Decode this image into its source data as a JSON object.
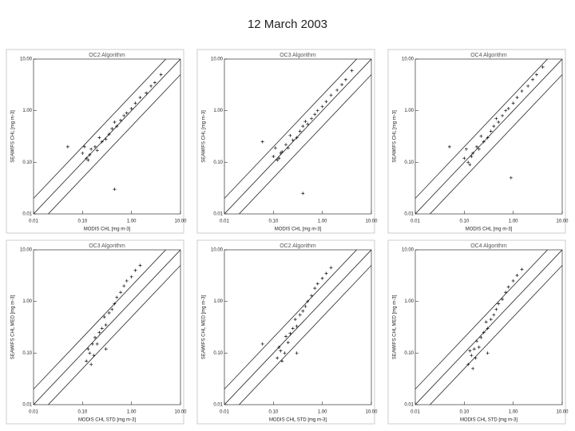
{
  "page_title": "12 March 2003",
  "chart_data": [
    {
      "type": "scatter",
      "title": "OC2 Algorithm",
      "xlabel": "MODIS CHL [mg m-3]",
      "ylabel": "SEAWIFS CHL [mg m-3]",
      "log": true,
      "xlim": [
        0.01,
        10
      ],
      "ylim": [
        0.01,
        10
      ],
      "xticks": [
        {
          "value": 0.01,
          "label": "0.01"
        },
        {
          "value": 0.1,
          "label": "0.10"
        },
        {
          "value": 1,
          "label": "1.00"
        },
        {
          "value": 10,
          "label": "10.00"
        }
      ],
      "yticks": [
        {
          "value": 0.01,
          "label": "0.01"
        },
        {
          "value": 0.1,
          "label": "0.10"
        },
        {
          "value": 1,
          "label": "1.00"
        },
        {
          "value": 10,
          "label": "10.00"
        }
      ],
      "reference_factors": [
        2,
        1,
        0.5
      ],
      "color": "#111111",
      "x": [
        0.1,
        0.12,
        0.15,
        0.11,
        0.14,
        0.18,
        0.2,
        0.13,
        0.25,
        0.3,
        0.22,
        0.35,
        0.4,
        0.5,
        0.45,
        0.6,
        0.7,
        0.8,
        1.0,
        1.2,
        1.5,
        2,
        2.5,
        3,
        4,
        0.05,
        0.45
      ],
      "y": [
        0.15,
        0.12,
        0.18,
        0.2,
        0.14,
        0.2,
        0.17,
        0.11,
        0.25,
        0.28,
        0.3,
        0.35,
        0.45,
        0.5,
        0.6,
        0.65,
        0.8,
        0.9,
        1.1,
        1.4,
        1.8,
        2.2,
        3,
        3.5,
        5,
        0.2,
        0.03
      ]
    },
    {
      "type": "scatter",
      "title": "OC3 Algorithm",
      "xlabel": "MODIS CHL [mg m-3]",
      "ylabel": "SEAWIFS CHL [mg m-3]",
      "log": true,
      "xlim": [
        0.01,
        10
      ],
      "ylim": [
        0.01,
        10
      ],
      "xticks": [
        {
          "value": 0.01,
          "label": "0.01"
        },
        {
          "value": 0.1,
          "label": "0.10"
        },
        {
          "value": 1,
          "label": "1.00"
        },
        {
          "value": 10,
          "label": "10.00"
        }
      ],
      "yticks": [
        {
          "value": 0.01,
          "label": "0.01"
        },
        {
          "value": 0.1,
          "label": "0.10"
        },
        {
          "value": 1,
          "label": "1.00"
        },
        {
          "value": 10,
          "label": "10.00"
        }
      ],
      "reference_factors": [
        2,
        1,
        0.5
      ],
      "color": "#111111",
      "x": [
        0.1,
        0.12,
        0.15,
        0.11,
        0.14,
        0.18,
        0.2,
        0.13,
        0.25,
        0.3,
        0.22,
        0.35,
        0.4,
        0.5,
        0.45,
        0.6,
        0.7,
        0.8,
        1.0,
        1.2,
        1.5,
        2,
        2.5,
        3,
        4,
        0.06,
        0.4
      ],
      "y": [
        0.13,
        0.11,
        0.16,
        0.19,
        0.15,
        0.22,
        0.19,
        0.12,
        0.27,
        0.3,
        0.33,
        0.4,
        0.5,
        0.55,
        0.62,
        0.7,
        0.85,
        1.0,
        1.2,
        1.5,
        2,
        2.5,
        3.2,
        4,
        6,
        0.25,
        0.025
      ]
    },
    {
      "type": "scatter",
      "title": "OC4 Algorithm",
      "xlabel": "MODIS CHL [mg m-3]",
      "ylabel": "SEAWIFS CHL [mg m-3]",
      "log": true,
      "xlim": [
        0.01,
        10
      ],
      "ylim": [
        0.01,
        10
      ],
      "xticks": [
        {
          "value": 0.01,
          "label": "0.01"
        },
        {
          "value": 0.1,
          "label": "0.10"
        },
        {
          "value": 1,
          "label": "1.00"
        },
        {
          "value": 10,
          "label": "10.00"
        }
      ],
      "yticks": [
        {
          "value": 0.01,
          "label": "0.01"
        },
        {
          "value": 0.1,
          "label": "0.10"
        },
        {
          "value": 1,
          "label": "1.00"
        },
        {
          "value": 10,
          "label": "10.00"
        }
      ],
      "reference_factors": [
        2,
        1,
        0.5
      ],
      "color": "#111111",
      "x": [
        0.1,
        0.12,
        0.15,
        0.11,
        0.14,
        0.18,
        0.2,
        0.13,
        0.25,
        0.3,
        0.22,
        0.35,
        0.4,
        0.5,
        0.45,
        0.6,
        0.7,
        0.8,
        1.0,
        1.2,
        1.5,
        2,
        2.5,
        3,
        4,
        0.05,
        0.9
      ],
      "y": [
        0.12,
        0.1,
        0.15,
        0.18,
        0.13,
        0.2,
        0.18,
        0.09,
        0.25,
        0.3,
        0.32,
        0.4,
        0.5,
        0.6,
        0.7,
        0.8,
        1.0,
        1.1,
        1.4,
        1.8,
        2.4,
        3,
        4,
        5,
        7,
        0.2,
        0.05
      ]
    },
    {
      "type": "scatter",
      "title": "OC3 Algorithm",
      "xlabel": "MODIS CHL STD [mg m-3]",
      "ylabel": "SEAWIFS CHL MED [mg m-3]",
      "log": true,
      "xlim": [
        0.01,
        10
      ],
      "ylim": [
        0.01,
        10
      ],
      "xticks": [
        {
          "value": 0.01,
          "label": "0.01"
        },
        {
          "value": 0.1,
          "label": "0.10"
        },
        {
          "value": 1,
          "label": "1.00"
        },
        {
          "value": 10,
          "label": "10.00"
        }
      ],
      "yticks": [
        {
          "value": 0.01,
          "label": "0.01"
        },
        {
          "value": 0.1,
          "label": "0.10"
        },
        {
          "value": 1,
          "label": "1.00"
        },
        {
          "value": 10,
          "label": "10.00"
        }
      ],
      "reference_factors": [
        2,
        1,
        0.5
      ],
      "color": "#111111",
      "x": [
        0.12,
        0.14,
        0.15,
        0.13,
        0.17,
        0.2,
        0.18,
        0.22,
        0.25,
        0.3,
        0.28,
        0.35,
        0.4,
        0.45,
        0.5,
        0.6,
        0.7,
        0.8,
        1,
        1.2,
        1.5,
        0.16,
        0.3
      ],
      "y": [
        0.07,
        0.1,
        0.06,
        0.12,
        0.09,
        0.15,
        0.2,
        0.25,
        0.3,
        0.35,
        0.5,
        0.6,
        0.7,
        0.9,
        1.2,
        1.5,
        2,
        2.5,
        3,
        4,
        5,
        0.15,
        0.12
      ]
    },
    {
      "type": "scatter",
      "title": "OC2 Algorithm",
      "xlabel": "MODIS CHL STD [mg m-3]",
      "ylabel": "SEAWIFS CHL MED [mg m-3]",
      "log": true,
      "xlim": [
        0.01,
        10
      ],
      "ylim": [
        0.01,
        10
      ],
      "xticks": [
        {
          "value": 0.01,
          "label": "0.01"
        },
        {
          "value": 0.1,
          "label": "0.10"
        },
        {
          "value": 1,
          "label": "1.00"
        },
        {
          "value": 10,
          "label": "10.00"
        }
      ],
      "yticks": [
        {
          "value": 0.01,
          "label": "0.01"
        },
        {
          "value": 0.1,
          "label": "0.10"
        },
        {
          "value": 1,
          "label": "1.00"
        },
        {
          "value": 10,
          "label": "10.00"
        }
      ],
      "reference_factors": [
        2,
        1,
        0.5
      ],
      "color": "#111111",
      "x": [
        0.12,
        0.14,
        0.15,
        0.13,
        0.17,
        0.2,
        0.18,
        0.22,
        0.25,
        0.3,
        0.28,
        0.35,
        0.4,
        0.45,
        0.5,
        0.6,
        0.7,
        0.8,
        1,
        1.2,
        1.5,
        0.06,
        0.3
      ],
      "y": [
        0.08,
        0.11,
        0.07,
        0.13,
        0.1,
        0.16,
        0.21,
        0.24,
        0.3,
        0.33,
        0.45,
        0.55,
        0.65,
        0.8,
        1.0,
        1.3,
        1.8,
        2.2,
        2.8,
        3.5,
        4.5,
        0.15,
        0.1
      ]
    },
    {
      "type": "scatter",
      "title": "OC4 Algorithm",
      "xlabel": "MODIS CHL STD [mg m-3]",
      "ylabel": "SEAWIFS CHL MED [mg m-3]",
      "log": true,
      "xlim": [
        0.01,
        10
      ],
      "ylim": [
        0.01,
        10
      ],
      "xticks": [
        {
          "value": 0.01,
          "label": "0.01"
        },
        {
          "value": 0.1,
          "label": "0.10"
        },
        {
          "value": 1,
          "label": "1.00"
        },
        {
          "value": 10,
          "label": "10.00"
        }
      ],
      "yticks": [
        {
          "value": 0.01,
          "label": "0.01"
        },
        {
          "value": 0.1,
          "label": "0.10"
        },
        {
          "value": 1,
          "label": "1.00"
        },
        {
          "value": 10,
          "label": "10.00"
        }
      ],
      "reference_factors": [
        2,
        1,
        0.5
      ],
      "color": "#111111",
      "x": [
        0.12,
        0.14,
        0.15,
        0.13,
        0.17,
        0.2,
        0.18,
        0.22,
        0.25,
        0.3,
        0.28,
        0.35,
        0.4,
        0.45,
        0.5,
        0.6,
        0.7,
        0.8,
        1,
        1.2,
        1.5,
        0.16,
        0.3
      ],
      "y": [
        0.06,
        0.09,
        0.05,
        0.11,
        0.08,
        0.13,
        0.17,
        0.2,
        0.25,
        0.3,
        0.4,
        0.45,
        0.55,
        0.7,
        0.9,
        1.1,
        1.5,
        1.9,
        2.5,
        3.2,
        4.2,
        0.12,
        0.1
      ]
    }
  ]
}
